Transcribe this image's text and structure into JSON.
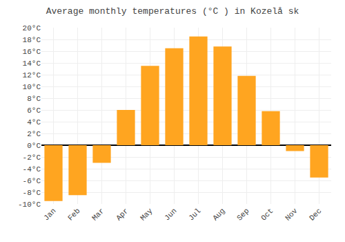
{
  "chart_data": {
    "type": "bar",
    "title": "Average monthly temperatures (°C ) in Kozelå sk",
    "categories": [
      "Jan",
      "Feb",
      "Mar",
      "Apr",
      "May",
      "Jun",
      "Jul",
      "Aug",
      "Sep",
      "Oct",
      "Nov",
      "Dec"
    ],
    "values": [
      -9.5,
      -8.5,
      -3.0,
      6.0,
      13.5,
      16.5,
      18.5,
      16.8,
      11.8,
      5.8,
      -1.0,
      -5.5
    ],
    "color": "#FFA520",
    "ylim": [
      -10,
      20
    ],
    "yticks": [
      {
        "value": -10,
        "label": "-10°C"
      },
      {
        "value": -8,
        "label": "-8°C"
      },
      {
        "value": -6,
        "label": "-6°C"
      },
      {
        "value": -4,
        "label": "-4°C"
      },
      {
        "value": -2,
        "label": "-2°C"
      },
      {
        "value": 0,
        "label": "0°C"
      },
      {
        "value": 2,
        "label": "2°C"
      },
      {
        "value": 4,
        "label": "4°C"
      },
      {
        "value": 6,
        "label": "6°C"
      },
      {
        "value": 8,
        "label": "8°C"
      },
      {
        "value": 10,
        "label": "10°C"
      },
      {
        "value": 12,
        "label": "12°C"
      },
      {
        "value": 14,
        "label": "14°C"
      },
      {
        "value": 16,
        "label": "16°C"
      },
      {
        "value": 18,
        "label": "18°C"
      },
      {
        "value": 20,
        "label": "20°C"
      }
    ],
    "grid": true
  }
}
